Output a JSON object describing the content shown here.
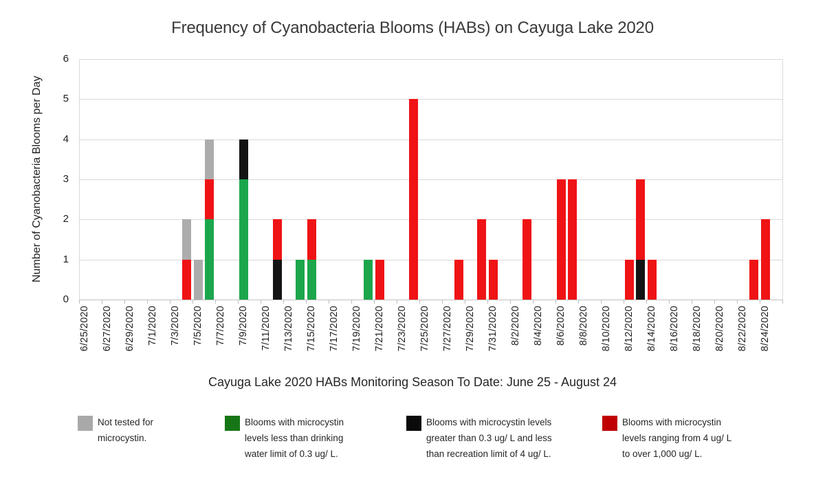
{
  "title": "Frequency of Cyanobacteria Blooms (HABs) on Cayuga Lake 2020",
  "chart_data": {
    "type": "bar",
    "stacked": true,
    "title": "Frequency of Cyanobacteria Blooms (HABs) on Cayuga Lake 2020",
    "xlabel": "Cayuga Lake 2020 HABs Monitoring Season To Date: June 25 - August 24",
    "ylabel": "Number of Cyanobacteria Blooms per Day",
    "ylim": [
      0,
      6
    ],
    "yticks": [
      0,
      1,
      2,
      3,
      4,
      5,
      6
    ],
    "grid": "horizontal",
    "x_label_interval_days": 2,
    "x_tick_labels": [
      "6/25/2020",
      "6/27/2020",
      "6/29/2020",
      "7/1/2020",
      "7/3/2020",
      "7/5/2020",
      "7/7/2020",
      "7/9/2020",
      "7/11/2020",
      "7/13/2020",
      "7/15/2020",
      "7/17/2020",
      "7/19/2020",
      "7/21/2020",
      "7/23/2020",
      "7/25/2020",
      "7/27/2020",
      "7/29/2020",
      "7/31/2020",
      "8/2/2020",
      "8/4/2020",
      "8/6/2020",
      "8/8/2020",
      "8/10/2020",
      "8/12/2020",
      "8/14/2020",
      "8/16/2020",
      "8/18/2020",
      "8/20/2020",
      "8/22/2020",
      "8/24/2020"
    ],
    "series": [
      {
        "key": "gray",
        "label": "Not tested for microcystin.",
        "bar_color": "#ACACAC",
        "legend_color": "#A9A9A9"
      },
      {
        "key": "green",
        "label": "Blooms with microcystin levels less than drinking water limit of 0.3 ug/ L.",
        "bar_color": "#1BA64C",
        "legend_color": "#167616"
      },
      {
        "key": "black",
        "label": "Blooms with microcystin levels greater than 0.3 ug/ L and less than recreation limit of 4 ug/ L.",
        "bar_color": "#141414",
        "legend_color": "#0A0A0A"
      },
      {
        "key": "red",
        "label": "Blooms with microcystin levels ranging from 4 ug/ L to over 1,000 ug/ L.",
        "bar_color": "#EF1315",
        "legend_color": "#C00000"
      }
    ],
    "bars": [
      {
        "date": "7/4/2020",
        "total": 2,
        "stack": [
          {
            "series": "red",
            "value": 1
          },
          {
            "series": "gray",
            "value": 1
          }
        ]
      },
      {
        "date": "7/5/2020",
        "total": 1,
        "stack": [
          {
            "series": "gray",
            "value": 1
          }
        ]
      },
      {
        "date": "7/6/2020",
        "total": 4,
        "stack": [
          {
            "series": "green",
            "value": 2
          },
          {
            "series": "red",
            "value": 1
          },
          {
            "series": "gray",
            "value": 1
          }
        ]
      },
      {
        "date": "7/9/2020",
        "total": 4,
        "stack": [
          {
            "series": "green",
            "value": 3
          },
          {
            "series": "black",
            "value": 1
          }
        ]
      },
      {
        "date": "7/12/2020",
        "total": 2,
        "stack": [
          {
            "series": "black",
            "value": 1
          },
          {
            "series": "red",
            "value": 1
          }
        ]
      },
      {
        "date": "7/14/2020",
        "total": 1,
        "stack": [
          {
            "series": "green",
            "value": 1
          }
        ]
      },
      {
        "date": "7/15/2020",
        "total": 2,
        "stack": [
          {
            "series": "green",
            "value": 1
          },
          {
            "series": "red",
            "value": 1
          }
        ]
      },
      {
        "date": "7/20/2020",
        "total": 1,
        "stack": [
          {
            "series": "green",
            "value": 1
          }
        ]
      },
      {
        "date": "7/21/2020",
        "total": 1,
        "stack": [
          {
            "series": "red",
            "value": 1
          }
        ]
      },
      {
        "date": "7/24/2020",
        "total": 5,
        "stack": [
          {
            "series": "red",
            "value": 5
          }
        ]
      },
      {
        "date": "7/28/2020",
        "total": 1,
        "stack": [
          {
            "series": "red",
            "value": 1
          }
        ]
      },
      {
        "date": "7/30/2020",
        "total": 2,
        "stack": [
          {
            "series": "red",
            "value": 2
          }
        ]
      },
      {
        "date": "7/31/2020",
        "total": 1,
        "stack": [
          {
            "series": "red",
            "value": 1
          }
        ]
      },
      {
        "date": "8/3/2020",
        "total": 2,
        "stack": [
          {
            "series": "red",
            "value": 2
          }
        ]
      },
      {
        "date": "8/6/2020",
        "total": 3,
        "stack": [
          {
            "series": "red",
            "value": 3
          }
        ]
      },
      {
        "date": "8/7/2020",
        "total": 3,
        "stack": [
          {
            "series": "red",
            "value": 3
          }
        ]
      },
      {
        "date": "8/12/2020",
        "total": 1,
        "stack": [
          {
            "series": "red",
            "value": 1
          }
        ]
      },
      {
        "date": "8/13/2020",
        "total": 3,
        "stack": [
          {
            "series": "black",
            "value": 1
          },
          {
            "series": "red",
            "value": 2
          }
        ]
      },
      {
        "date": "8/14/2020",
        "total": 1,
        "stack": [
          {
            "series": "red",
            "value": 1
          }
        ]
      },
      {
        "date": "8/23/2020",
        "total": 1,
        "stack": [
          {
            "series": "red",
            "value": 1
          }
        ]
      },
      {
        "date": "8/24/2020",
        "total": 2,
        "stack": [
          {
            "series": "red",
            "value": 2
          }
        ]
      }
    ]
  },
  "legend": {
    "items": [
      {
        "color": "#A9A9A9",
        "lines": [
          "Not tested for",
          "microcystin."
        ]
      },
      {
        "color": "#167616",
        "lines": [
          "Blooms with microcystin",
          "levels less than drinking",
          "water limit of 0.3 ug/ L."
        ]
      },
      {
        "color": "#0A0A0A",
        "lines": [
          "Blooms with microcystin levels",
          "greater than 0.3 ug/ L and less",
          "than recreation limit of 4 ug/ L."
        ]
      },
      {
        "color": "#C00000",
        "lines": [
          "Blooms with microcystin",
          "levels ranging from 4 ug/ L",
          "to over 1,000 ug/ L."
        ]
      }
    ]
  },
  "colors": {
    "background": "#FFFFFF",
    "gridline": "#D9D9D9",
    "axis": "#BFBFBF",
    "text": "#262626",
    "title_text": "#3A3A3A"
  }
}
